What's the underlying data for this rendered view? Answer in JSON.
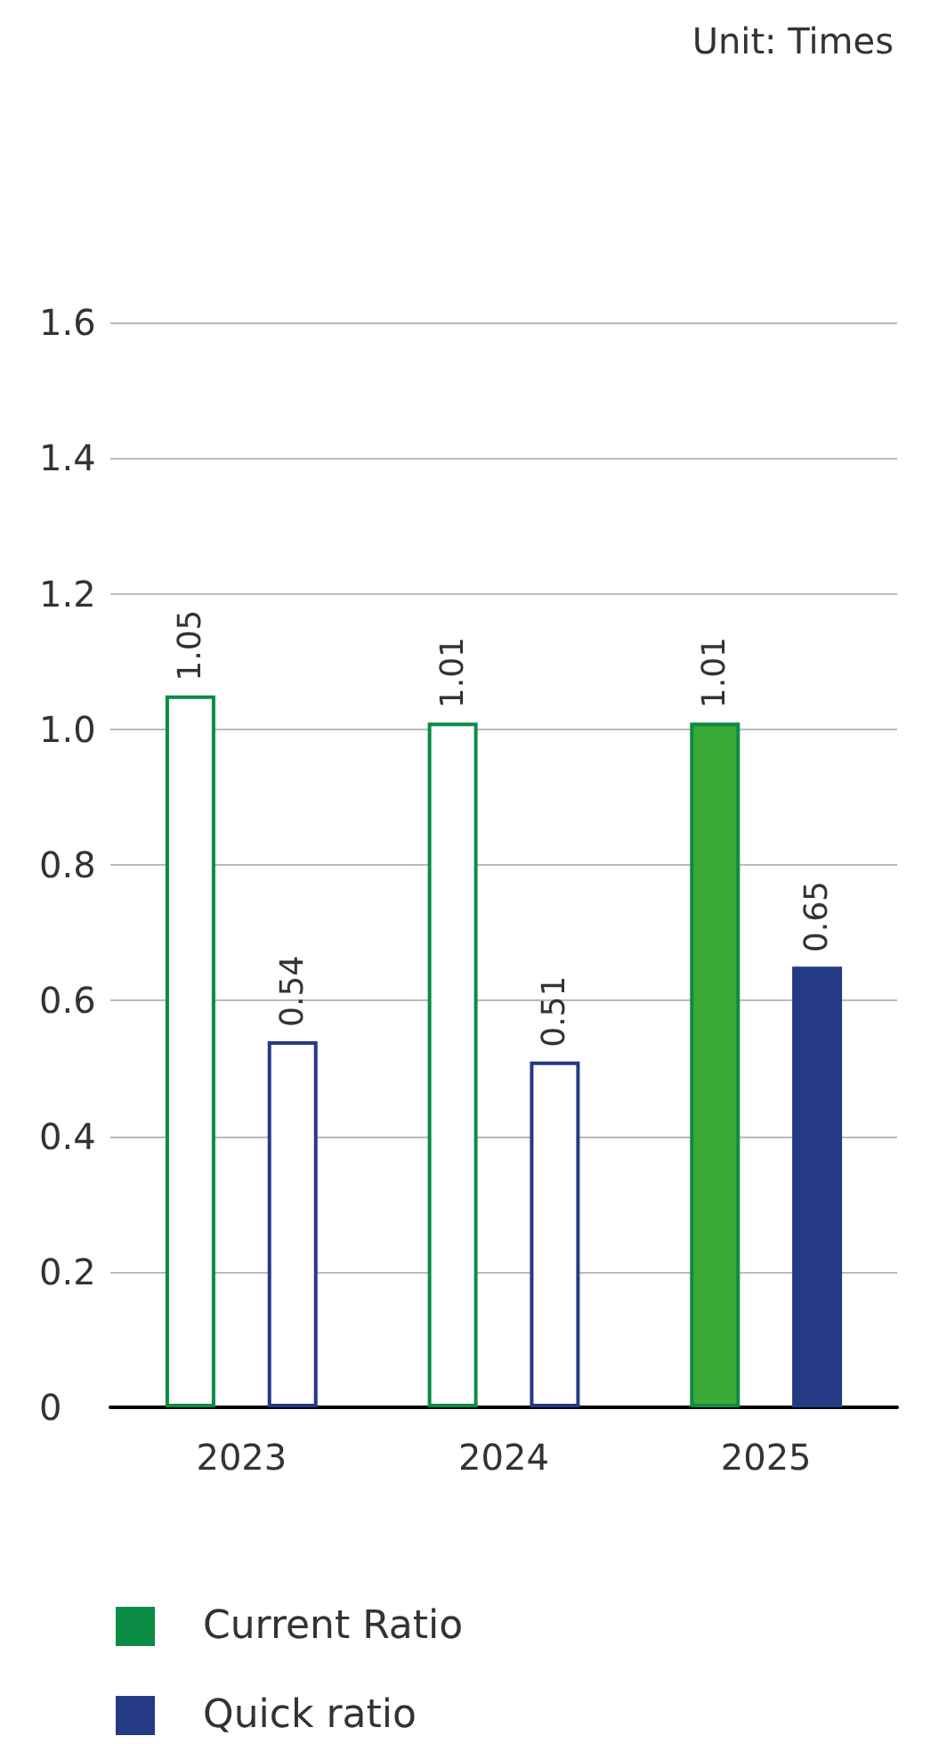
{
  "chart_data": {
    "type": "bar",
    "categories": [
      "2023",
      "2024",
      "2025"
    ],
    "series": [
      {
        "name": "Current Ratio",
        "color": "#0b8c44",
        "colors": [
          "#ffffff",
          "#ffffff",
          "#3aa935"
        ],
        "values": [
          1.05,
          1.01,
          1.01
        ]
      },
      {
        "name": "Quick ratio",
        "color": "#253a85",
        "colors": [
          "#ffffff",
          "#ffffff",
          "#253a85"
        ],
        "values": [
          0.54,
          0.51,
          0.65
        ]
      }
    ],
    "ylim": [
      0,
      1.6
    ],
    "yticks": [
      0,
      0.2,
      0.4,
      0.6,
      0.8,
      {
        "value": 1,
        "label": "1.0"
      },
      1.2,
      1.4,
      1.6
    ],
    "grid": "y",
    "legend": "bottom left",
    "data_labels": true,
    "annotations": [
      "Unit: Times"
    ]
  }
}
